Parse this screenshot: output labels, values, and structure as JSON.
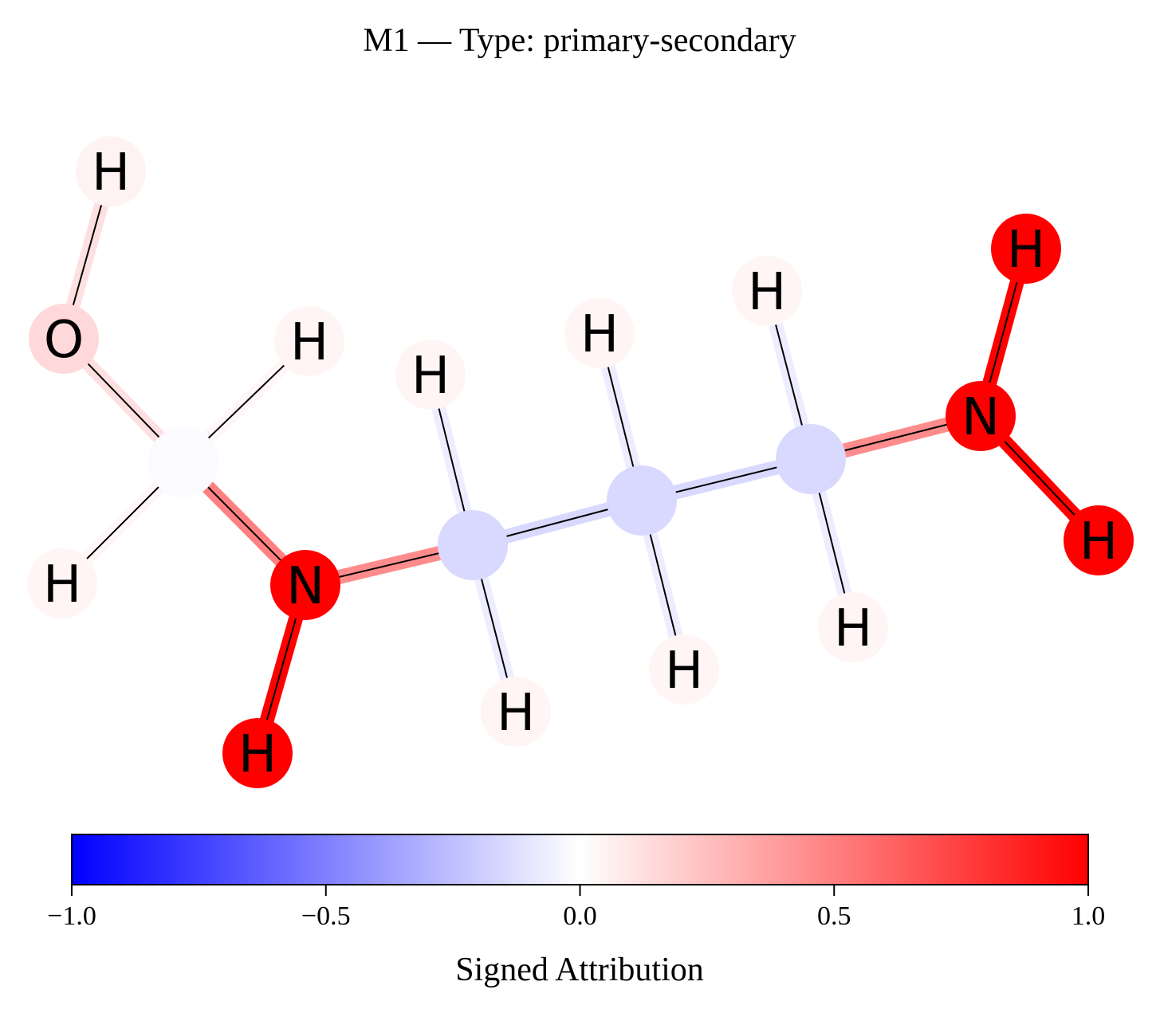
{
  "title": "M1 — Type: primary-secondary",
  "colorbar": {
    "label": "Signed Attribution",
    "min": -1.0,
    "max": 1.0,
    "ticks": [
      {
        "value": -1.0,
        "label": "−1.0"
      },
      {
        "value": -0.5,
        "label": "−0.5"
      },
      {
        "value": 0.0,
        "label": "0.0"
      },
      {
        "value": 0.5,
        "label": "0.5"
      },
      {
        "value": 1.0,
        "label": "1.0"
      }
    ],
    "colormap": {
      "negative": "#0000ff",
      "zero": "#ffffff",
      "positive": "#ff0000"
    }
  },
  "molecule": {
    "atoms": [
      {
        "id": "H_o",
        "symbol": "H",
        "attribution": 0.05
      },
      {
        "id": "O",
        "symbol": "O",
        "attribution": 0.15
      },
      {
        "id": "C1",
        "symbol": "",
        "attribution": -0.02
      },
      {
        "id": "H_c1a",
        "symbol": "H",
        "attribution": 0.04
      },
      {
        "id": "H_c1b",
        "symbol": "H",
        "attribution": 0.04
      },
      {
        "id": "N1",
        "symbol": "N",
        "attribution": 1.0
      },
      {
        "id": "H_n1",
        "symbol": "H",
        "attribution": 1.0
      },
      {
        "id": "C2",
        "symbol": "",
        "attribution": -0.15
      },
      {
        "id": "H_c2a",
        "symbol": "H",
        "attribution": 0.04
      },
      {
        "id": "H_c2b",
        "symbol": "H",
        "attribution": 0.04
      },
      {
        "id": "C3",
        "symbol": "",
        "attribution": -0.15
      },
      {
        "id": "H_c3a",
        "symbol": "H",
        "attribution": 0.04
      },
      {
        "id": "H_c3b",
        "symbol": "H",
        "attribution": 0.04
      },
      {
        "id": "C4",
        "symbol": "",
        "attribution": -0.15
      },
      {
        "id": "H_c4a",
        "symbol": "H",
        "attribution": 0.04
      },
      {
        "id": "H_c4b",
        "symbol": "H",
        "attribution": 0.04
      },
      {
        "id": "N2",
        "symbol": "N",
        "attribution": 1.0
      },
      {
        "id": "H_n2a",
        "symbol": "H",
        "attribution": 1.0
      },
      {
        "id": "H_n2b",
        "symbol": "H",
        "attribution": 1.0
      }
    ],
    "bonds": [
      {
        "from": "H_o",
        "to": "O",
        "attribution": 0.12
      },
      {
        "from": "O",
        "to": "C1",
        "attribution": 0.12
      },
      {
        "from": "C1",
        "to": "H_c1a",
        "attribution": 0.03
      },
      {
        "from": "C1",
        "to": "H_c1b",
        "attribution": 0.03
      },
      {
        "from": "C1",
        "to": "N1",
        "attribution": 0.5
      },
      {
        "from": "N1",
        "to": "H_n1",
        "attribution": 1.0
      },
      {
        "from": "N1",
        "to": "C2",
        "attribution": 0.45
      },
      {
        "from": "C2",
        "to": "H_c2a",
        "attribution": -0.07
      },
      {
        "from": "C2",
        "to": "H_c2b",
        "attribution": -0.07
      },
      {
        "from": "C2",
        "to": "C3",
        "attribution": -0.15
      },
      {
        "from": "C3",
        "to": "H_c3a",
        "attribution": -0.07
      },
      {
        "from": "C3",
        "to": "H_c3b",
        "attribution": -0.07
      },
      {
        "from": "C3",
        "to": "C4",
        "attribution": -0.15
      },
      {
        "from": "C4",
        "to": "H_c4a",
        "attribution": -0.07
      },
      {
        "from": "C4",
        "to": "H_c4b",
        "attribution": -0.07
      },
      {
        "from": "C4",
        "to": "N2",
        "attribution": 0.45
      },
      {
        "from": "N2",
        "to": "H_n2a",
        "attribution": 1.0
      },
      {
        "from": "N2",
        "to": "H_n2b",
        "attribution": 1.0
      }
    ]
  }
}
